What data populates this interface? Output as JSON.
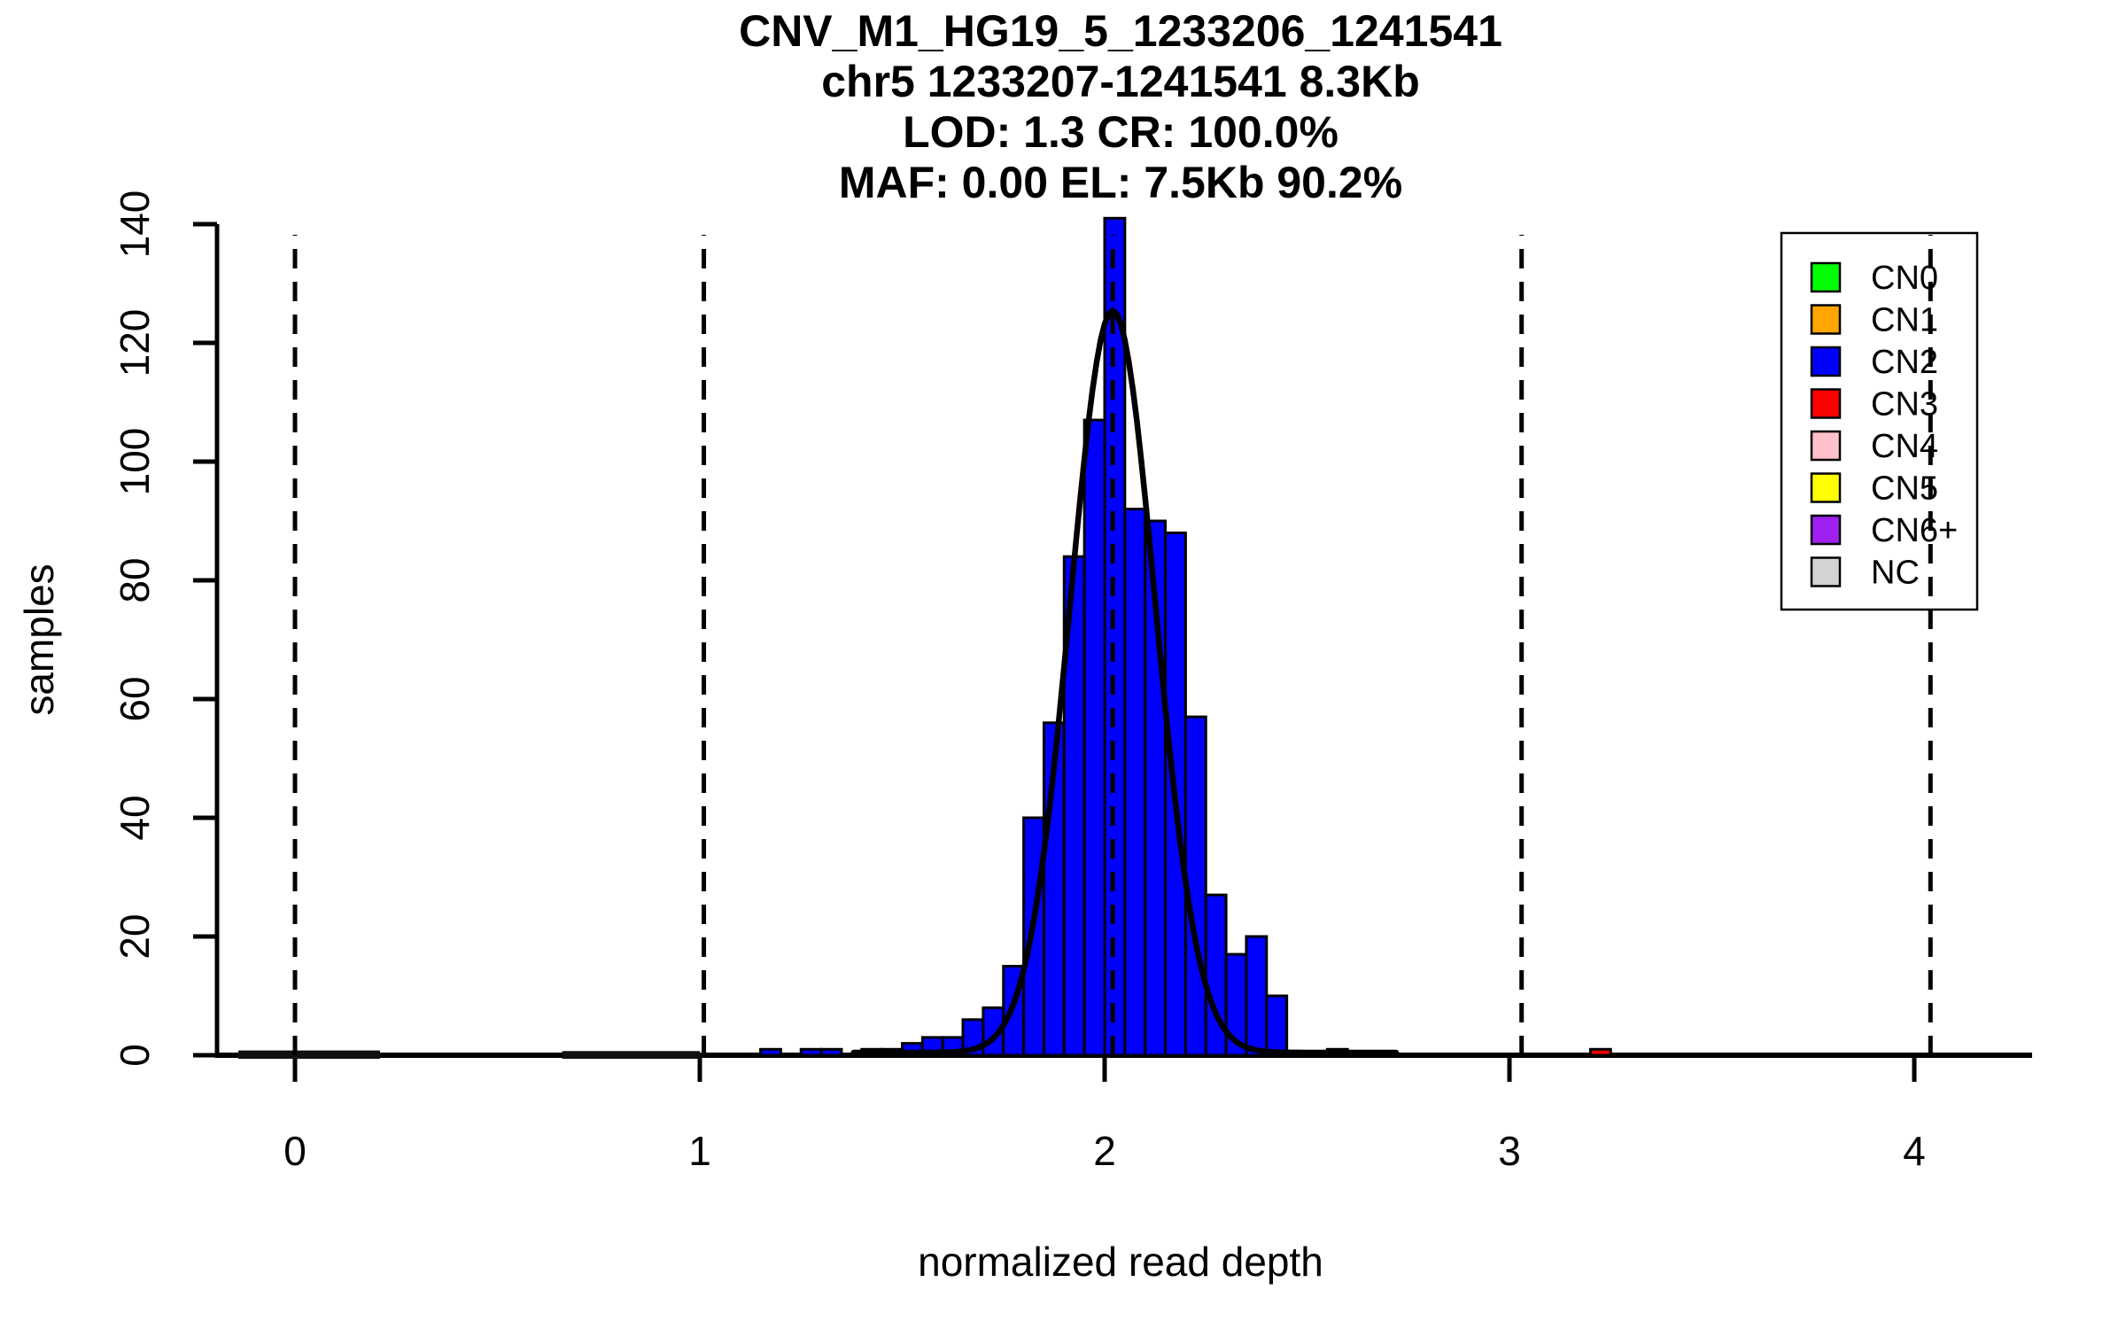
{
  "title": {
    "lines": [
      "CNV_M1_HG19_5_1233206_1241541",
      "chr5 1233207-1241541 8.3Kb",
      "LOD: 1.3 CR: 100.0%",
      "MAF: 0.00 EL: 7.5Kb 90.2%"
    ]
  },
  "chart_data": {
    "type": "bar",
    "subtype": "histogram-with-fit-curve",
    "title": "CNV_M1_HG19_5_1233206_1241541 / chr5 1233207-1241541 8.3Kb / LOD: 1.3 CR: 100.0% / MAF: 0.00 EL: 7.5Kb 90.2%",
    "xlabel": "normalized read depth",
    "ylabel": "samples",
    "xlim": [
      -0.19,
      4.29
    ],
    "ylim": [
      0,
      146
    ],
    "grid": false,
    "x_ticks": [
      0,
      1,
      2,
      3,
      4
    ],
    "x_tick_labels": [
      "0",
      "1",
      "2",
      "3",
      "4"
    ],
    "y_ticks": [
      0,
      20,
      40,
      60,
      80,
      100,
      120,
      140
    ],
    "y_tick_labels": [
      "0",
      "20",
      "40",
      "60",
      "80",
      "100",
      "120",
      "140"
    ],
    "bin_width": 0.05,
    "bar_fill": "#0000FF",
    "bar_stroke": "#000000",
    "bars": [
      {
        "x": 1.15,
        "h": 1
      },
      {
        "x": 1.25,
        "h": 1
      },
      {
        "x": 1.3,
        "h": 1
      },
      {
        "x": 1.4,
        "h": 1
      },
      {
        "x": 1.45,
        "h": 1
      },
      {
        "x": 1.5,
        "h": 2
      },
      {
        "x": 1.55,
        "h": 3
      },
      {
        "x": 1.6,
        "h": 3
      },
      {
        "x": 1.65,
        "h": 6
      },
      {
        "x": 1.7,
        "h": 8
      },
      {
        "x": 1.75,
        "h": 15
      },
      {
        "x": 1.8,
        "h": 40
      },
      {
        "x": 1.85,
        "h": 56
      },
      {
        "x": 1.9,
        "h": 84
      },
      {
        "x": 1.95,
        "h": 107
      },
      {
        "x": 2.0,
        "h": 141
      },
      {
        "x": 2.05,
        "h": 92
      },
      {
        "x": 2.1,
        "h": 90
      },
      {
        "x": 2.15,
        "h": 88
      },
      {
        "x": 2.2,
        "h": 57
      },
      {
        "x": 2.25,
        "h": 27
      },
      {
        "x": 2.3,
        "h": 17
      },
      {
        "x": 2.35,
        "h": 20
      },
      {
        "x": 2.4,
        "h": 10
      },
      {
        "x": 2.55,
        "h": 1
      },
      {
        "x": 3.2,
        "h": 1,
        "color": "#FF0000"
      }
    ],
    "trace_segments": [
      {
        "x0": -0.14,
        "x1": 0.21,
        "h": 0.8
      },
      {
        "x0": 0.66,
        "x1": 1.0,
        "h": 0.7
      }
    ],
    "curve": {
      "shape": "gaussian",
      "mean": 2.02,
      "sd": 0.105,
      "amplitude": 125,
      "color": "#000000"
    },
    "dashed_lines": {
      "x": [
        0,
        1.01,
        2.02,
        3.03,
        4.04
      ],
      "color": "#000000",
      "meaning": "copy-number positions CN0..CN4"
    },
    "legend": {
      "position": "top-right",
      "items": [
        {
          "label": "CN0",
          "color": "#00FF00"
        },
        {
          "label": "CN1",
          "color": "#FFA500"
        },
        {
          "label": "CN2",
          "color": "#0000FF"
        },
        {
          "label": "CN3",
          "color": "#FF0000"
        },
        {
          "label": "CN4",
          "color": "#FFC0CB"
        },
        {
          "label": "CN5",
          "color": "#FFFF00"
        },
        {
          "label": "CN6+",
          "color": "#A020F0"
        },
        {
          "label": "NC",
          "color": "#D3D3D3"
        }
      ]
    }
  }
}
